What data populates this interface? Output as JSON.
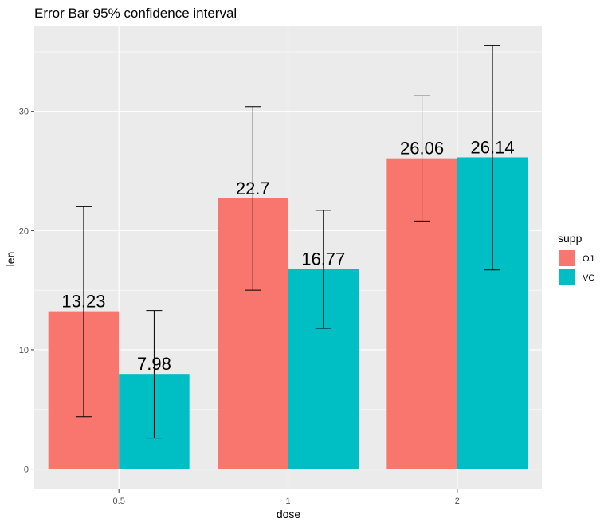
{
  "chart_data": {
    "type": "bar",
    "title": "Error Bar 95% confidence interval",
    "xlabel": "dose",
    "ylabel": "len",
    "categories": [
      "0.5",
      "1",
      "2"
    ],
    "ylim": [
      -1.7,
      37.2
    ],
    "yticks": [
      0,
      10,
      20,
      30
    ],
    "ytick_labels": [
      "0",
      "10",
      "20",
      "30"
    ],
    "grid": true,
    "legend": {
      "title": "supp",
      "position": "right"
    },
    "series": [
      {
        "name": "OJ",
        "color": "#F8766D",
        "values": [
          13.23,
          22.7,
          26.06
        ],
        "labels": [
          "13.23",
          "22.7",
          "26.06"
        ],
        "ci_low": [
          4.4,
          15.0,
          20.8
        ],
        "ci_high": [
          22.0,
          30.4,
          31.3
        ]
      },
      {
        "name": "VC",
        "color": "#00BFC4",
        "values": [
          7.98,
          16.77,
          26.14
        ],
        "labels": [
          "7.98",
          "16.77",
          "26.14"
        ],
        "ci_low": [
          2.6,
          11.8,
          16.7
        ],
        "ci_high": [
          13.3,
          21.7,
          35.5
        ]
      }
    ]
  }
}
